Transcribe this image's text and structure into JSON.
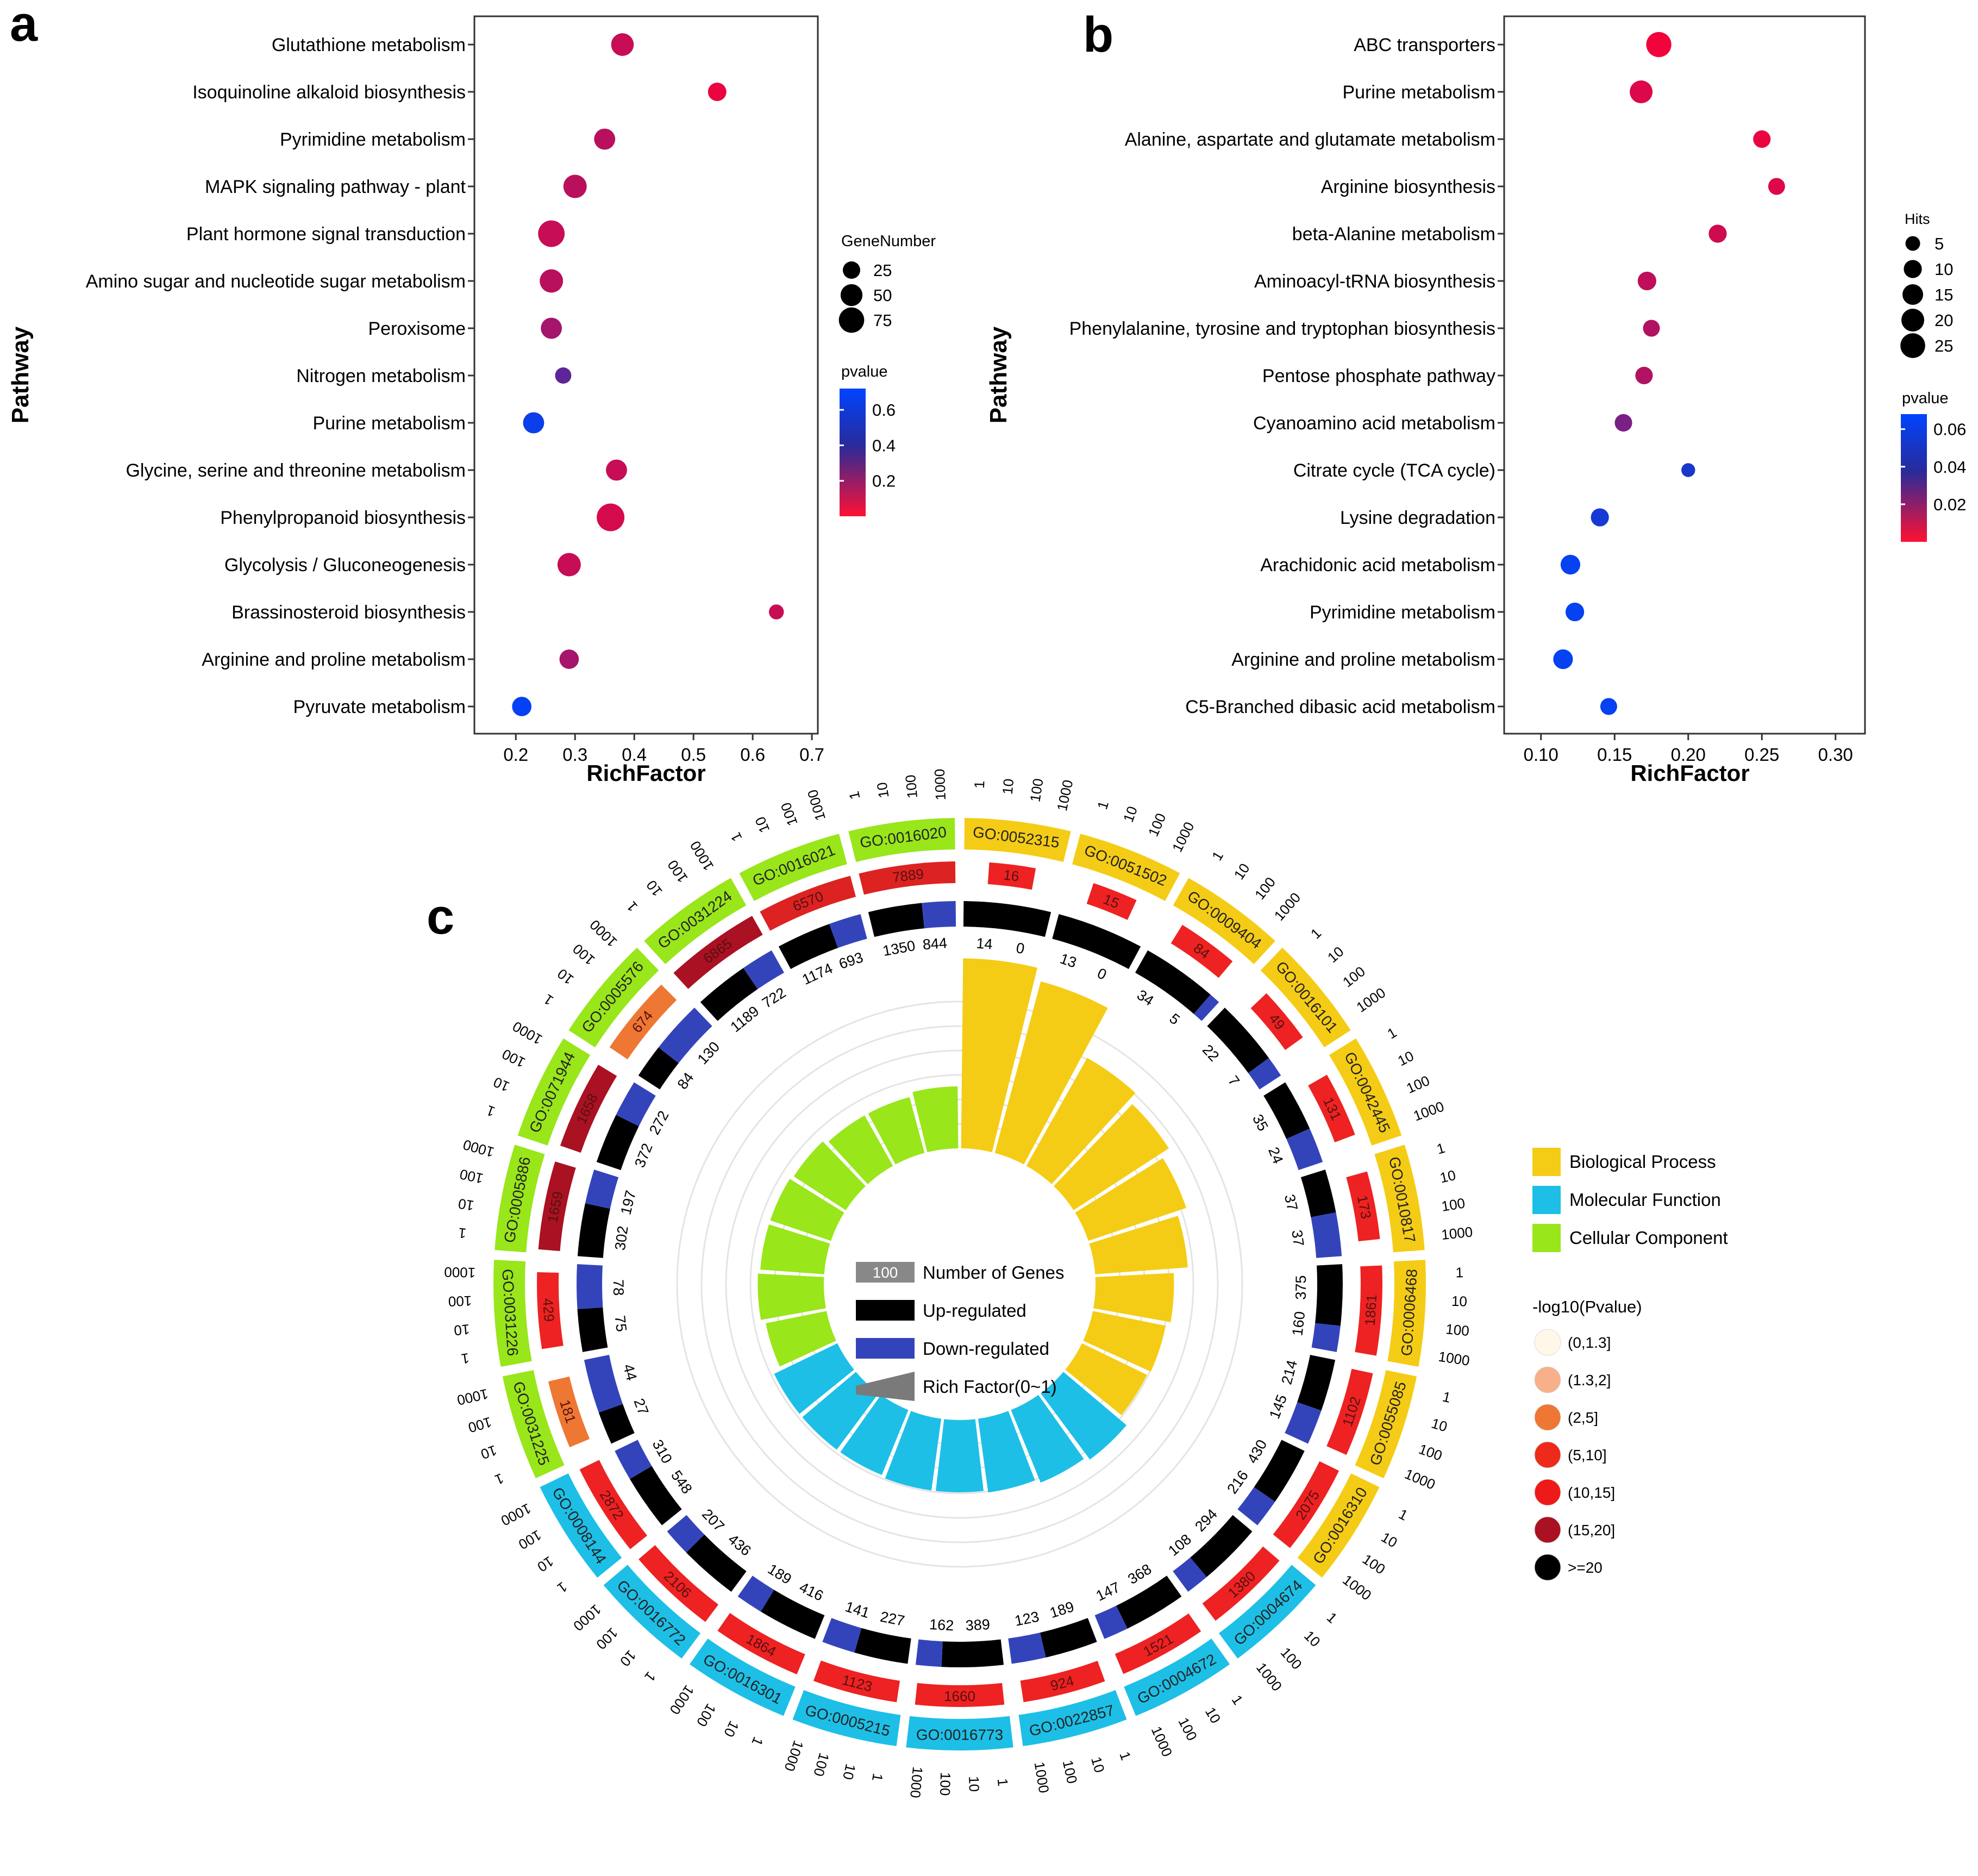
{
  "chart_data": [
    {
      "panel": "a",
      "type": "scatter",
      "xlabel": "RichFactor",
      "ylabel": "Pathway",
      "xlim": [
        0.13,
        0.71
      ],
      "xticks": [
        0.2,
        0.3,
        0.4,
        0.5,
        0.6,
        0.7
      ],
      "xtick_labels": [
        "0.2",
        "0.3",
        "0.4",
        "0.5",
        "0.6",
        "0.7"
      ],
      "categories": [
        "Glutathione metabolism",
        "Isoquinoline alkaloid biosynthesis",
        "Pyrimidine metabolism",
        "MAPK signaling pathway - plant",
        "Plant hormone signal transduction",
        "Amino sugar and nucleotide sugar metabolism",
        "Peroxisome",
        "Nitrogen metabolism",
        "Purine metabolism",
        "Glycine, serine and threonine metabolism",
        "Phenylpropanoid biosynthesis",
        "Glycolysis / Gluconeogenesis",
        "Brassinosteroid biosynthesis",
        "Arginine and proline metabolism",
        "Pyruvate metabolism"
      ],
      "x": [
        0.38,
        0.54,
        0.35,
        0.3,
        0.26,
        0.26,
        0.26,
        0.28,
        0.23,
        0.37,
        0.36,
        0.29,
        0.64,
        0.29,
        0.21
      ],
      "size": [
        55,
        30,
        45,
        60,
        85,
        60,
        45,
        20,
        45,
        45,
        95,
        60,
        15,
        35,
        35
      ],
      "pvalue": [
        0.1,
        0.05,
        0.12,
        0.12,
        0.1,
        0.12,
        0.15,
        0.25,
        0.55,
        0.1,
        0.08,
        0.1,
        0.1,
        0.15,
        0.6
      ],
      "size_legend": {
        "title": "GeneNumber",
        "values": [
          25,
          50,
          75
        ],
        "labels": [
          "25",
          "50",
          "75"
        ]
      },
      "color_legend": {
        "title": "pvalue",
        "range": [
          0.02,
          0.65
        ],
        "ticks": [
          0.6,
          0.4,
          0.2
        ],
        "labels": [
          "0.6",
          "0.4",
          "0.2"
        ],
        "colors": [
          "#ff0033",
          "#2233bb",
          "#0044ff"
        ]
      }
    },
    {
      "panel": "b",
      "type": "scatter",
      "xlabel": "RichFactor",
      "ylabel": "Pathway",
      "xlim": [
        0.075,
        0.32
      ],
      "xticks": [
        0.1,
        0.15,
        0.2,
        0.25,
        0.3
      ],
      "xtick_labels": [
        "0.10",
        "0.15",
        "0.20",
        "0.25",
        "0.30"
      ],
      "categories": [
        "ABC transporters",
        "Purine metabolism",
        "Alanine, aspartate and glutamate metabolism",
        "Arginine biosynthesis",
        "beta-Alanine metabolism",
        "Aminoacyl-tRNA biosynthesis",
        "Phenylalanine, tyrosine and tryptophan biosynthesis",
        "Pentose phosphate pathway",
        "Cyanoamino acid metabolism",
        "Citrate cycle (TCA cycle)",
        "Lysine degradation",
        "Arachidonic acid metabolism",
        "Pyrimidine metabolism",
        "Arginine and proline metabolism",
        "C5-Branched dibasic acid metabolism"
      ],
      "x": [
        0.18,
        0.168,
        0.25,
        0.26,
        0.22,
        0.172,
        0.175,
        0.17,
        0.156,
        0.2,
        0.14,
        0.12,
        0.123,
        0.115,
        0.146
      ],
      "size": [
        26,
        20,
        9,
        8,
        10,
        11,
        8,
        9,
        9,
        4,
        10,
        13,
        11,
        13,
        8
      ],
      "pvalue": [
        0.003,
        0.006,
        0.004,
        0.006,
        0.008,
        0.01,
        0.012,
        0.012,
        0.02,
        0.04,
        0.045,
        0.058,
        0.058,
        0.058,
        0.058
      ],
      "size_legend": {
        "title": "Hits",
        "values": [
          5,
          10,
          15,
          20,
          25
        ],
        "labels": [
          "5",
          "10",
          "15",
          "20",
          "25"
        ]
      },
      "color_legend": {
        "title": "pvalue",
        "range": [
          0.001,
          0.064
        ],
        "ticks": [
          0.06,
          0.04,
          0.02
        ],
        "labels": [
          "0.06",
          "0.04",
          "0.02"
        ],
        "colors": [
          "#ff0033",
          "#2233bb",
          "#0044ff"
        ]
      }
    },
    {
      "panel": "c",
      "type": "circos",
      "category_colors": {
        "BP": "#f5cc15",
        "MF": "#1dbfe6",
        "CC": "#99e61a"
      },
      "scale_ticks": [
        "1",
        "10",
        "100",
        "1000"
      ],
      "terms": [
        {
          "id": "GO:0052315",
          "cat": "BP",
          "count": "16",
          "count_color": "#ee2222",
          "up": 14,
          "down": 0,
          "rich": 0.92
        },
        {
          "id": "GO:0051502",
          "cat": "BP",
          "count": "15",
          "count_color": "#ee2222",
          "up": 13,
          "down": 0,
          "rich": 0.86
        },
        {
          "id": "GO:0009404",
          "cat": "BP",
          "count": "84",
          "count_color": "#ee2222",
          "up": 34,
          "down": 5,
          "rich": 0.6
        },
        {
          "id": "GO:0016101",
          "cat": "BP",
          "count": "49",
          "count_color": "#ee2222",
          "up": 22,
          "down": 7,
          "rich": 0.55
        },
        {
          "id": "GO:0042445",
          "cat": "BP",
          "count": "131",
          "count_color": "#ee2222",
          "up": 35,
          "down": 24,
          "rich": 0.5
        },
        {
          "id": "GO:0010817",
          "cat": "BP",
          "count": "173",
          "count_color": "#ee2222",
          "up": 37,
          "down": 37,
          "rich": 0.45
        },
        {
          "id": "GO:0006468",
          "cat": "BP",
          "count": "1861",
          "count_color": "#ee2222",
          "up": 375,
          "down": 160,
          "rich": 0.38
        },
        {
          "id": "GO:0055085",
          "cat": "BP",
          "count": "1102",
          "count_color": "#ee2222",
          "up": 214,
          "down": 145,
          "rich": 0.36
        },
        {
          "id": "GO:0016310",
          "cat": "BP",
          "count": "2075",
          "count_color": "#ee2222",
          "up": 430,
          "down": 216,
          "rich": 0.35
        },
        {
          "id": "GO:0004674",
          "cat": "MF",
          "count": "1380",
          "count_color": "#ee2222",
          "up": 294,
          "down": 108,
          "rich": 0.4
        },
        {
          "id": "GO:0004672",
          "cat": "MF",
          "count": "1521",
          "count_color": "#ee2222",
          "up": 368,
          "down": 147,
          "rich": 0.38
        },
        {
          "id": "GO:0022857",
          "cat": "MF",
          "count": "924",
          "count_color": "#ee2222",
          "up": 189,
          "down": 123,
          "rich": 0.36
        },
        {
          "id": "GO:0016773",
          "cat": "MF",
          "count": "1660",
          "count_color": "#ee2222",
          "up": 389,
          "down": 162,
          "rich": 0.35
        },
        {
          "id": "GO:0005215",
          "cat": "MF",
          "count": "1123",
          "count_color": "#ee2222",
          "up": 227,
          "down": 141,
          "rich": 0.35
        },
        {
          "id": "GO:0016301",
          "cat": "MF",
          "count": "1864",
          "count_color": "#ee2222",
          "up": 416,
          "down": 189,
          "rich": 0.34
        },
        {
          "id": "GO:0016772",
          "cat": "MF",
          "count": "2106",
          "count_color": "#ee2222",
          "up": 436,
          "down": 207,
          "rich": 0.34
        },
        {
          "id": "GO:0008144",
          "cat": "MF",
          "count": "2872",
          "count_color": "#ee2222",
          "up": 548,
          "down": 310,
          "rich": 0.34
        },
        {
          "id": "GO:0031225",
          "cat": "CC",
          "count": "181",
          "count_color": "#ee7733",
          "up": 27,
          "down": 44,
          "rich": 0.3
        },
        {
          "id": "GO:0031226",
          "cat": "CC",
          "count": "429",
          "count_color": "#ee2222",
          "up": 75,
          "down": 78,
          "rich": 0.32
        },
        {
          "id": "GO:0005886",
          "cat": "CC",
          "count": "1659",
          "count_color": "#aa1122",
          "up": 302,
          "down": 197,
          "rich": 0.31
        },
        {
          "id": "GO:0071944",
          "cat": "CC",
          "count": "1658",
          "count_color": "#aa1122",
          "up": 372,
          "down": 272,
          "rich": 0.31
        },
        {
          "id": "GO:0005576",
          "cat": "CC",
          "count": "674",
          "count_color": "#ee7733",
          "up": 84,
          "down": 130,
          "rich": 0.3
        },
        {
          "id": "GO:0031224",
          "cat": "CC",
          "count": "6865",
          "count_color": "#aa1122",
          "up": 1189,
          "down": 722,
          "rich": 0.28
        },
        {
          "id": "GO:0016021",
          "cat": "CC",
          "count": "6570",
          "count_color": "#dd2222",
          "up": 1174,
          "down": 693,
          "rich": 0.28
        },
        {
          "id": "GO:0016020",
          "cat": "CC",
          "count": "7889",
          "count_color": "#dd2222",
          "up": 1350,
          "down": 844,
          "rich": 0.3
        }
      ],
      "legend_categories": [
        {
          "label": "Biological Process",
          "color": "#f5cc15"
        },
        {
          "label": "Molecular Function",
          "color": "#1dbfe6"
        },
        {
          "label": "Cellular Component",
          "color": "#99e61a"
        }
      ],
      "pvalue_legend": {
        "title": "-log10(Pvalue)",
        "items": [
          {
            "label": "(0,1.3]",
            "color": "#fff7e8"
          },
          {
            "label": "(1.3,2]",
            "color": "#f7b08a"
          },
          {
            "label": "(2,5]",
            "color": "#ee7733"
          },
          {
            "label": "(5,10]",
            "color": "#ee2a1a"
          },
          {
            "label": "(10,15]",
            "color": "#ee1a1a"
          },
          {
            "label": "(15,20]",
            "color": "#aa1122"
          },
          {
            "label": ">=20",
            "color": "#000000"
          }
        ]
      },
      "track_legend": {
        "number_sample": "100",
        "number_label": "Number of Genes",
        "up_label": "Up-regulated",
        "down_label": "Down-regulated",
        "rich_label": "Rich Factor(0~1)"
      }
    }
  ],
  "panel_labels": {
    "a": "a",
    "b": "b",
    "c": "c"
  }
}
